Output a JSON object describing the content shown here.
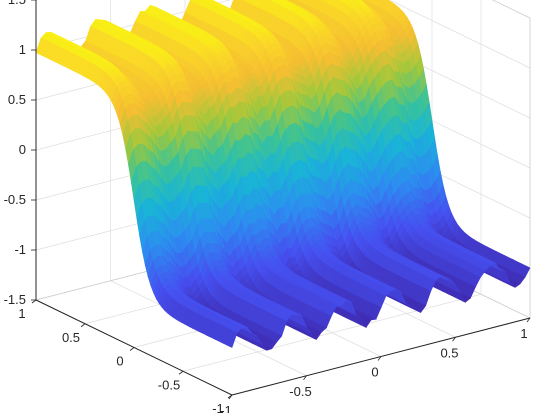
{
  "chart_data": {
    "type": "surface",
    "title": "",
    "xlabel": "",
    "ylabel": "",
    "zlabel": "",
    "colormap": "parula",
    "grid": true,
    "view": "3-D perspective, default MATLAB view",
    "xlim": [
      -1,
      1
    ],
    "ylim": [
      -1,
      1
    ],
    "zlim": [
      -1.5,
      1.5
    ],
    "x_ticks": [
      {
        "value": -1,
        "label": "-1"
      },
      {
        "value": -0.5,
        "label": "-0.5"
      },
      {
        "value": 0,
        "label": "0"
      },
      {
        "value": 0.5,
        "label": "0.5"
      },
      {
        "value": 1,
        "label": "1"
      }
    ],
    "y_ticks": [
      {
        "value": 1,
        "label": "1"
      },
      {
        "value": 0.5,
        "label": "0.5"
      },
      {
        "value": 0,
        "label": "0"
      },
      {
        "value": -0.5,
        "label": "-0.5"
      },
      {
        "value": -1,
        "label": "-1"
      }
    ],
    "z_ticks": [
      {
        "value": 1.5,
        "label": "1.5"
      },
      {
        "value": 1,
        "label": "1"
      },
      {
        "value": 0.5,
        "label": "0.5"
      },
      {
        "value": 0,
        "label": "0"
      },
      {
        "value": -0.5,
        "label": "-0.5"
      },
      {
        "value": -1,
        "label": "-1"
      },
      {
        "value": -1.5,
        "label": "-1.5"
      }
    ],
    "surface": {
      "shape": "sigmoid step across y, noisy ridges along x",
      "z_low": -1,
      "z_high": 1,
      "step_center_y": 0,
      "step_steepness": 12,
      "ridge_count": 6,
      "ridge_amplitude": 0.15
    },
    "colors": {
      "low": "#3e26a8",
      "mid_low": "#2f96e0",
      "mid": "#2ab8a0",
      "mid_high": "#a2c93a",
      "high": "#f9fb0e",
      "orange": "#f5b335"
    }
  }
}
